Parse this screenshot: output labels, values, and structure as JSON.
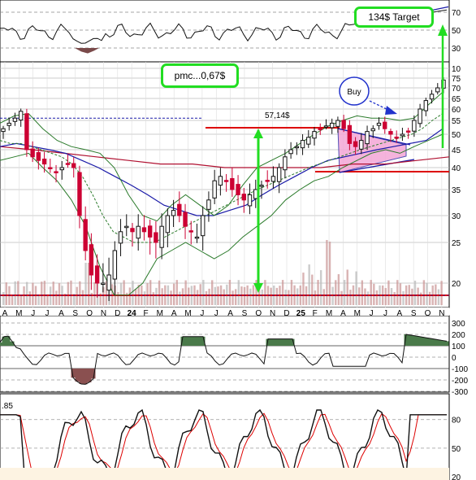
{
  "chart_data": [
    {
      "type": "line",
      "panel": "top-indicator",
      "ylabels": [
        "70",
        "50",
        "30"
      ],
      "ylim": [
        20,
        80
      ],
      "annotation_target": "134$ Target"
    },
    {
      "type": "candlestick",
      "panel": "price",
      "annotation_pmc": "pmc...0,67$",
      "annotation_move": "57,14$",
      "annotation_buy": "Buy",
      "ylabels": [
        "75",
        "70",
        "65",
        "60",
        "55",
        "50",
        "45",
        "40",
        "35",
        "30",
        "25",
        "20",
        "10"
      ],
      "ylim": [
        17,
        82
      ],
      "xlabels": [
        "A",
        "M",
        "J",
        "J",
        "A",
        "S",
        "O",
        "N",
        "D",
        "24",
        "F",
        "M",
        "A",
        "M",
        "J",
        "J",
        "A",
        "S",
        "O",
        "N",
        "D",
        "25",
        "F",
        "M",
        "A",
        "M",
        "J",
        "J",
        "A",
        "S",
        "O",
        "N"
      ],
      "close": [
        52,
        54,
        56,
        59,
        45,
        43,
        42,
        41,
        40,
        39,
        40,
        41,
        40,
        30,
        24,
        21,
        20,
        20,
        21,
        24,
        27,
        28,
        27,
        28,
        27,
        26,
        25,
        28,
        30,
        31,
        30,
        28,
        27,
        26,
        30,
        33,
        37,
        38,
        37,
        35,
        34,
        33,
        34,
        35,
        36,
        37,
        38,
        40,
        43,
        45,
        46,
        48,
        49,
        51,
        52,
        53,
        54,
        55,
        52,
        47,
        46,
        48,
        51,
        52,
        54,
        52,
        50,
        49,
        50,
        51,
        55,
        60,
        64,
        67,
        70,
        74
      ],
      "sma_green_dotted": [
        48,
        47,
        47,
        46,
        45,
        44,
        43,
        41,
        38,
        34,
        30,
        27,
        26,
        25,
        25,
        25,
        26,
        27,
        28,
        29,
        30,
        31,
        32,
        33,
        34,
        35,
        36,
        37,
        38,
        39,
        40,
        41,
        42,
        43,
        44,
        45,
        46,
        47,
        48,
        49,
        50,
        52,
        55,
        58
      ],
      "sma_blue": [
        46,
        47,
        46,
        45,
        44,
        42,
        40,
        38,
        36,
        34,
        32,
        31,
        30,
        30,
        31,
        32,
        34,
        36,
        38,
        40,
        42,
        43,
        44,
        45,
        46,
        47,
        48,
        52
      ],
      "sma_red": [
        46,
        45,
        44,
        43,
        42,
        41,
        41,
        40,
        40,
        40,
        40,
        41,
        41,
        42,
        43
      ],
      "resistance": 56,
      "support": 19
    },
    {
      "type": "area",
      "panel": "cci",
      "ylabels": [
        "300",
        "200",
        "100",
        "0",
        "-100",
        "-200",
        "-300"
      ],
      "ylim": [
        -300,
        300
      ]
    },
    {
      "type": "line",
      "panel": "stochastic",
      "ylabels": [
        "80",
        "50",
        "20"
      ],
      "ylim": [
        20,
        90
      ],
      "value_label": ".85"
    }
  ],
  "colors": {
    "up_candle": "#111111",
    "down_candle": "#cc0033",
    "resistance": "#dd0000",
    "arrow": "#22dd22",
    "triangle_fill": "#f4a6d6",
    "buy_circle": "#2233cc",
    "sma_blue": "#1a1aa8",
    "sma_red": "#b01030",
    "band_green": "#2a7a2a",
    "cci_fill_pos": "#4a7a4a",
    "cci_fill_neg": "#8a5050",
    "volume": "#cc9999"
  }
}
